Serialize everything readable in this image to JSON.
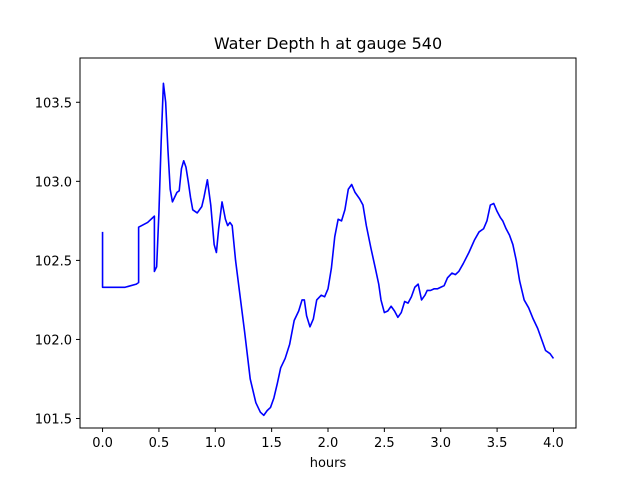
{
  "chart_data": {
    "type": "line",
    "title": "Water Depth h at gauge 540",
    "xlabel": "hours",
    "ylabel": "",
    "xlim": [
      -0.2,
      4.2
    ],
    "ylim": [
      101.44,
      103.78
    ],
    "xticks": [
      0.0,
      0.5,
      1.0,
      1.5,
      2.0,
      2.5,
      3.0,
      3.5,
      4.0
    ],
    "xtick_labels": [
      "0.0",
      "0.5",
      "1.0",
      "1.5",
      "2.0",
      "2.5",
      "3.0",
      "3.5",
      "4.0"
    ],
    "yticks": [
      101.5,
      102.0,
      102.5,
      103.0,
      103.5
    ],
    "ytick_labels": [
      "101.5",
      "102.0",
      "102.5",
      "103.0",
      "103.5"
    ],
    "grid": false,
    "series": [
      {
        "color": "#0000ff",
        "x": [
          0.0,
          0.0,
          0.1,
          0.2,
          0.3,
          0.32,
          0.32,
          0.4,
          0.46,
          0.46,
          0.48,
          0.5,
          0.52,
          0.54,
          0.56,
          0.58,
          0.6,
          0.62,
          0.64,
          0.66,
          0.68,
          0.7,
          0.72,
          0.74,
          0.76,
          0.78,
          0.8,
          0.84,
          0.88,
          0.9,
          0.93,
          0.96,
          0.99,
          1.01,
          1.03,
          1.06,
          1.09,
          1.11,
          1.13,
          1.15,
          1.18,
          1.21,
          1.26,
          1.31,
          1.36,
          1.4,
          1.43,
          1.46,
          1.49,
          1.52,
          1.55,
          1.58,
          1.62,
          1.66,
          1.7,
          1.74,
          1.77,
          1.79,
          1.81,
          1.84,
          1.87,
          1.9,
          1.94,
          1.97,
          2.0,
          2.03,
          2.06,
          2.09,
          2.12,
          2.15,
          2.18,
          2.21,
          2.24,
          2.28,
          2.31,
          2.34,
          2.38,
          2.42,
          2.45,
          2.47,
          2.5,
          2.53,
          2.56,
          2.59,
          2.62,
          2.65,
          2.68,
          2.71,
          2.74,
          2.77,
          2.8,
          2.83,
          2.86,
          2.88,
          2.91,
          2.94,
          2.97,
          3.0,
          3.03,
          3.06,
          3.1,
          3.13,
          3.16,
          3.2,
          3.25,
          3.3,
          3.34,
          3.38,
          3.41,
          3.44,
          3.47,
          3.5,
          3.53,
          3.55,
          3.58,
          3.61,
          3.64,
          3.67,
          3.7,
          3.74,
          3.78,
          3.82,
          3.86,
          3.9,
          3.93,
          3.97,
          4.0
        ],
        "y": [
          102.68,
          102.33,
          102.33,
          102.33,
          102.35,
          102.36,
          102.71,
          102.74,
          102.78,
          102.43,
          102.46,
          102.8,
          103.25,
          103.62,
          103.5,
          103.2,
          102.95,
          102.87,
          102.9,
          102.93,
          102.94,
          103.08,
          103.13,
          103.09,
          103.0,
          102.9,
          102.82,
          102.8,
          102.84,
          102.9,
          103.01,
          102.85,
          102.6,
          102.55,
          102.7,
          102.87,
          102.76,
          102.72,
          102.74,
          102.72,
          102.5,
          102.33,
          102.05,
          101.75,
          101.6,
          101.54,
          101.52,
          101.55,
          101.57,
          101.63,
          101.72,
          101.82,
          101.88,
          101.97,
          102.12,
          102.18,
          102.25,
          102.25,
          102.15,
          102.08,
          102.13,
          102.25,
          102.28,
          102.27,
          102.32,
          102.45,
          102.65,
          102.76,
          102.75,
          102.82,
          102.95,
          102.98,
          102.93,
          102.89,
          102.85,
          102.72,
          102.58,
          102.45,
          102.35,
          102.25,
          102.17,
          102.18,
          102.21,
          102.18,
          102.14,
          102.17,
          102.24,
          102.23,
          102.27,
          102.33,
          102.35,
          102.25,
          102.28,
          102.31,
          102.31,
          102.32,
          102.32,
          102.33,
          102.34,
          102.39,
          102.42,
          102.41,
          102.43,
          102.48,
          102.55,
          102.63,
          102.68,
          102.7,
          102.75,
          102.85,
          102.86,
          102.81,
          102.77,
          102.75,
          102.7,
          102.66,
          102.6,
          102.5,
          102.37,
          102.25,
          102.2,
          102.13,
          102.07,
          101.99,
          101.93,
          101.91,
          101.88
        ]
      }
    ]
  }
}
